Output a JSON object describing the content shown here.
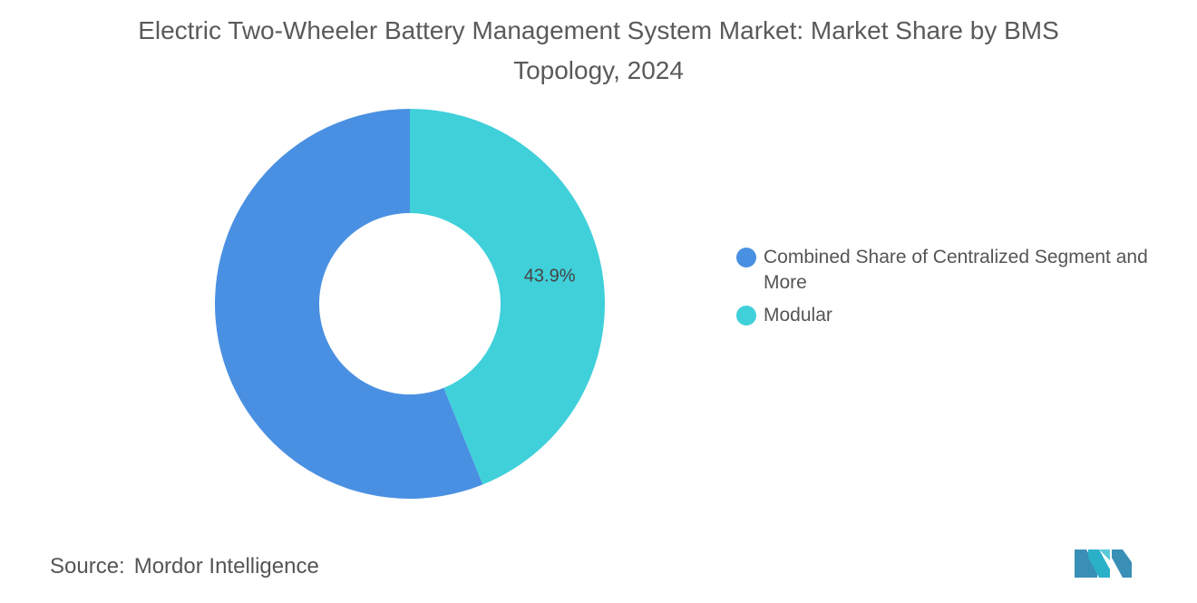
{
  "chart_data": {
    "type": "donut",
    "title": "Electric Two-Wheeler Battery Management System Market: Market Share by BMS Topology, 2024",
    "categories": [
      "Combined Share of Centralized Segment and More",
      "Modular"
    ],
    "values": [
      56.1,
      43.9
    ],
    "value_labels": [
      null,
      "43.9%"
    ],
    "colors": [
      "#4a90e2",
      "#40d0da"
    ],
    "source_label": "Source:",
    "source": "Mordor Intelligence"
  }
}
